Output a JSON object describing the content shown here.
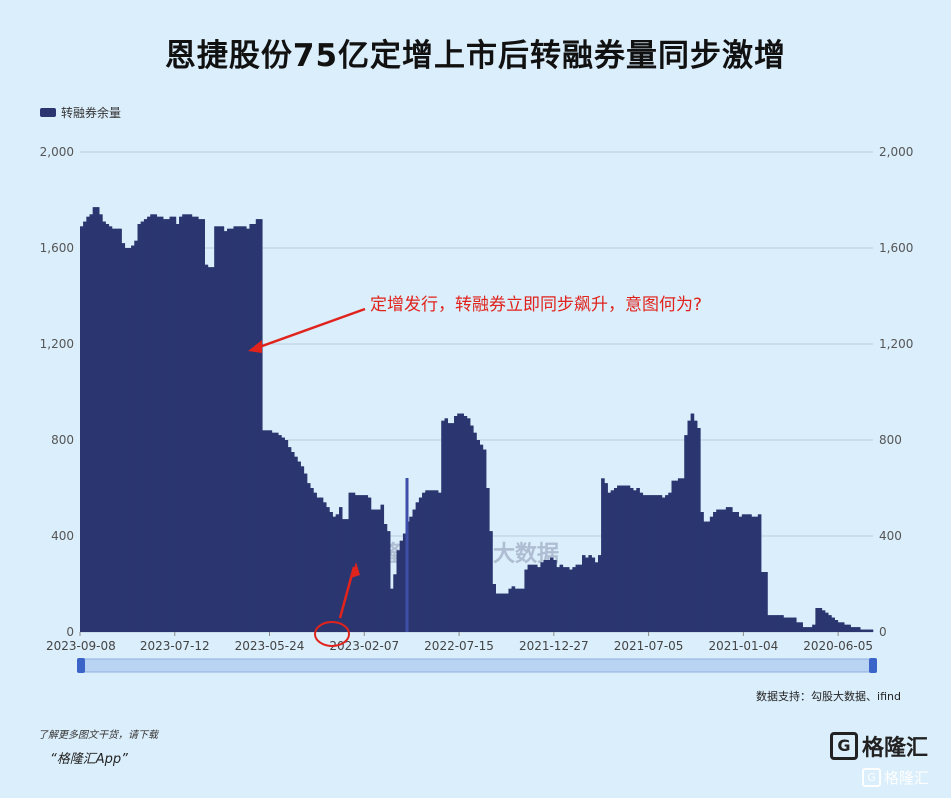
{
  "title": "恩捷股份75亿定增上市后转融券量同步激增",
  "legend_label": "转融券余量",
  "annotation": "定增发行，转融券立即同步飙升，意图何为?",
  "source": "数据支持：勾股大数据、ifind",
  "footer_note": "了解更多图文干货，请下载",
  "footer_app": "“格隆汇App”",
  "logo": {
    "mark": "G",
    "text": "格隆汇"
  },
  "watermark": {
    "left": "格隆汇",
    "right": "勾股大数据"
  },
  "corner_watermark": "格隆汇",
  "colors": {
    "bar": "#2b3670",
    "annotation": "#e0231c",
    "grid": "#b8cfe0",
    "background": "#dbeefb",
    "slider": "#4f7fd6"
  },
  "chart_data": {
    "type": "area",
    "x_order": "descending-date",
    "x_tick_labels": [
      "2023-09-08",
      "2023-07-12",
      "2023-05-24",
      "2023-02-07",
      "2022-07-15",
      "2021-12-27",
      "2021-07-05",
      "2021-01-04",
      "2020-06-05"
    ],
    "y_tick_labels": [
      "0",
      "400",
      "800",
      "1,200",
      "1,600",
      "2,000"
    ],
    "ylim": [
      0,
      2000
    ],
    "grid": true,
    "dual_axis": true,
    "legend_position": "top-left",
    "series": [
      {
        "name": "转融券余量",
        "values": [
          1690,
          1710,
          1730,
          1740,
          1770,
          1770,
          1740,
          1710,
          1700,
          1690,
          1680,
          1680,
          1680,
          1620,
          1600,
          1600,
          1610,
          1630,
          1700,
          1710,
          1720,
          1730,
          1740,
          1740,
          1730,
          1730,
          1720,
          1720,
          1730,
          1730,
          1700,
          1730,
          1740,
          1740,
          1740,
          1730,
          1730,
          1720,
          1720,
          1530,
          1520,
          1520,
          1690,
          1690,
          1690,
          1670,
          1680,
          1680,
          1690,
          1690,
          1690,
          1690,
          1680,
          1700,
          1700,
          1720,
          1720,
          840,
          840,
          840,
          830,
          830,
          820,
          810,
          800,
          770,
          750,
          730,
          710,
          690,
          660,
          620,
          600,
          580,
          560,
          560,
          540,
          520,
          500,
          480,
          490,
          520,
          470,
          470,
          580,
          580,
          570,
          570,
          570,
          570,
          560,
          510,
          510,
          510,
          530,
          450,
          420,
          180,
          240,
          340,
          380,
          410,
          460,
          480,
          510,
          540,
          560,
          580,
          590,
          590,
          590,
          590,
          580,
          880,
          890,
          870,
          870,
          900,
          910,
          910,
          900,
          890,
          860,
          830,
          800,
          780,
          760,
          600,
          420,
          200,
          160,
          160,
          160,
          160,
          180,
          190,
          180,
          180,
          180,
          260,
          280,
          280,
          280,
          270,
          290,
          300,
          300,
          310,
          300,
          270,
          280,
          270,
          270,
          260,
          270,
          280,
          280,
          320,
          310,
          320,
          310,
          290,
          320,
          640,
          620,
          580,
          590,
          600,
          610,
          610,
          610,
          610,
          600,
          590,
          600,
          580,
          570,
          570,
          570,
          570,
          570,
          570,
          560,
          570,
          580,
          630,
          630,
          640,
          640,
          820,
          880,
          910,
          880,
          850,
          500,
          460,
          460,
          480,
          500,
          510,
          510,
          510,
          520,
          520,
          500,
          500,
          480,
          490,
          490,
          490,
          480,
          480,
          490,
          250,
          250,
          70,
          70,
          70,
          70,
          70,
          60,
          60,
          60,
          60,
          40,
          40,
          20,
          20,
          20,
          30,
          100,
          100,
          90,
          80,
          70,
          60,
          50,
          40,
          40,
          30,
          30,
          20,
          20,
          20,
          10,
          10,
          10,
          10
        ]
      }
    ]
  }
}
